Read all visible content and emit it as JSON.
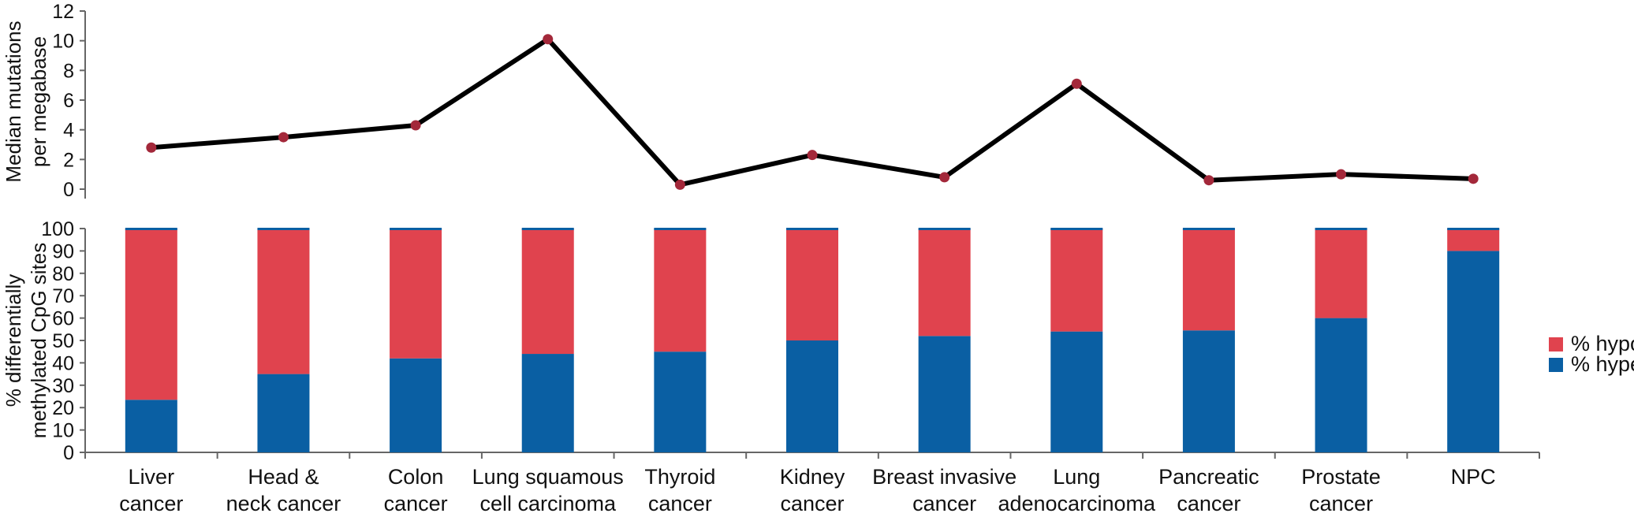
{
  "chart_data": [
    {
      "type": "line",
      "ylabel": [
        "Median mutations",
        "per megabase"
      ],
      "ylim": [
        0,
        12
      ],
      "yticks": [
        "0",
        "2",
        "4",
        "6",
        "8",
        "10",
        "12"
      ],
      "grid": false,
      "values": [
        2.8,
        3.5,
        4.3,
        10.1,
        0.3,
        2.3,
        0.8,
        7.1,
        0.6,
        1.0,
        0.7
      ],
      "colors": {
        "line": "#000000",
        "marker": "#a3283a"
      }
    },
    {
      "type": "bar",
      "stacked": true,
      "categories": [
        [
          "Liver",
          "cancer"
        ],
        [
          "Head &",
          "neck cancer"
        ],
        [
          "Colon",
          "cancer"
        ],
        [
          "Lung squamous",
          "cell carcinoma"
        ],
        [
          "Thyroid",
          "cancer"
        ],
        [
          "Kidney",
          "cancer"
        ],
        [
          "Breast invasive",
          "cancer"
        ],
        [
          "Lung",
          "adenocarcinoma"
        ],
        [
          "Pancreatic",
          "cancer"
        ],
        [
          "Prostate",
          "cancer"
        ],
        [
          "NPC"
        ]
      ],
      "ylabel": [
        "% differentially",
        "methylated CpG sites"
      ],
      "ylim": [
        0,
        100
      ],
      "yticks": [
        "0",
        "10",
        "20",
        "30",
        "40",
        "50",
        "60",
        "70",
        "80",
        "90",
        "100"
      ],
      "grid": false,
      "legend_position": "right",
      "series": [
        {
          "name": "% hyper",
          "color": "#0a5fa3",
          "values": [
            23.5,
            35,
            42,
            44,
            45,
            50,
            52,
            54,
            54.5,
            60,
            90
          ]
        },
        {
          "name": "% hypo",
          "color": "#e0434e",
          "values": [
            76.5,
            65,
            58,
            56,
            55,
            50,
            48,
            46,
            45.5,
            40,
            10
          ]
        }
      ],
      "legend_order": [
        "% hypo",
        "% hyper"
      ]
    }
  ]
}
